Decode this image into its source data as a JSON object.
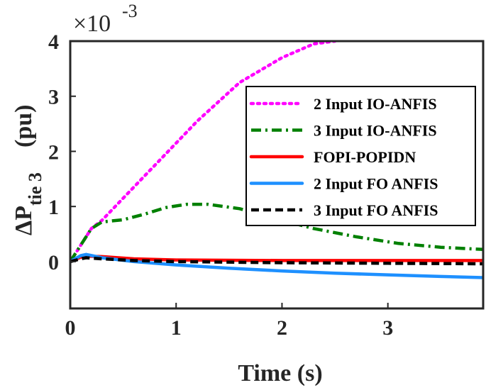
{
  "chart_data": {
    "type": "line",
    "xlabel": "Time (s)",
    "ylabel": {
      "main": "ΔP",
      "subscript": "tie 3",
      "unit": "(pu)"
    },
    "y_multiplier": {
      "base": "×10",
      "exponent": "-3"
    },
    "xlim": [
      0,
      3.9
    ],
    "ylim": [
      -0.85,
      4.0
    ],
    "x_ticks": [
      0,
      1,
      2,
      3
    ],
    "x_tick_labels": [
      "0",
      "1",
      "2",
      "3"
    ],
    "y_ticks": [
      0,
      1,
      2,
      3,
      4
    ],
    "y_tick_labels": [
      "0",
      "1",
      "2",
      "3",
      "4"
    ],
    "grid": false,
    "legend_position": "top-right",
    "series": [
      {
        "name": "2 Input IO-ANFIS",
        "color": "#ff00ff",
        "dash": "dotted",
        "x": [
          0,
          0.1,
          0.2,
          0.3,
          0.5,
          0.8,
          1.2,
          1.6,
          2.0,
          2.3,
          2.5
        ],
        "y": [
          0,
          0.3,
          0.6,
          0.75,
          1.15,
          1.75,
          2.55,
          3.25,
          3.7,
          3.95,
          4.0
        ]
      },
      {
        "name": "3 Input IO-ANFIS",
        "color": "#008000",
        "dash": "dashdot",
        "x": [
          0,
          0.1,
          0.2,
          0.3,
          0.5,
          0.7,
          0.9,
          1.1,
          1.3,
          1.6,
          1.9,
          2.3,
          2.7,
          3.1,
          3.5,
          3.9
        ],
        "y": [
          0,
          0.3,
          0.6,
          0.72,
          0.76,
          0.86,
          0.98,
          1.04,
          1.04,
          0.96,
          0.8,
          0.6,
          0.45,
          0.33,
          0.26,
          0.22
        ]
      },
      {
        "name": "FOPI-POPIDN",
        "color": "#ff0000",
        "dash": "solid",
        "x": [
          0,
          0.1,
          0.15,
          0.3,
          0.6,
          1.0,
          2.0,
          3.0,
          3.9
        ],
        "y": [
          0,
          0.08,
          0.1,
          0.09,
          0.05,
          0.03,
          0.02,
          0.02,
          0.02
        ]
      },
      {
        "name": "2 Input FO ANFIS",
        "color": "#1e90ff",
        "dash": "solid",
        "x": [
          0,
          0.1,
          0.15,
          0.3,
          0.6,
          1.0,
          1.5,
          2.0,
          2.5,
          3.0,
          3.5,
          3.9
        ],
        "y": [
          0,
          0.11,
          0.13,
          0.07,
          0.0,
          -0.06,
          -0.12,
          -0.17,
          -0.21,
          -0.24,
          -0.27,
          -0.29
        ]
      },
      {
        "name": "3 Input FO ANFIS",
        "color": "#000000",
        "dash": "dashed",
        "x": [
          0,
          0.1,
          0.15,
          0.3,
          0.6,
          1.0,
          2.0,
          3.0,
          3.9
        ],
        "y": [
          0,
          0.05,
          0.07,
          0.05,
          0.02,
          0.0,
          -0.02,
          -0.03,
          -0.04
        ]
      }
    ]
  }
}
